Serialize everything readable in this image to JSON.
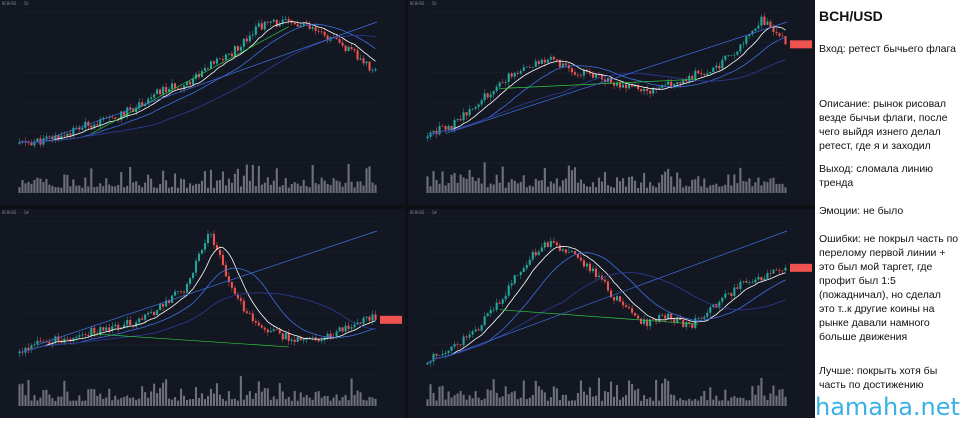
{
  "notes": {
    "title": "BCH/USD",
    "entry": "Вход: ретест бычьего флага",
    "description": "Описание: рынок рисовал везде бычьи флаги, после чего выйдя изнего делал ретест, где я и заходил",
    "exit": "Выход: сломала линию тренда",
    "emotions": "Эмоции: не было",
    "mistakes": "Ошибки: не покрыл часть по перелому первой линии + это был мой таргет, где профит был 1:5 (пожадничал), но сделал это т..к другие коины на рынке давали намного больше движения",
    "better": "Лучше: покрыть хотя бы часть по достижению"
  },
  "watermark": "hamaha.net",
  "colors": {
    "panel_bg": "#131722",
    "candle_up": "#26a69a",
    "candle_down": "#ef5350",
    "volume": "#8c8f99",
    "trendline": "#2ecc40",
    "ma_blue": "#3f6fe0",
    "ma_navy": "#2c3c9c",
    "accent_text": "#39b1e6"
  },
  "charts": [
    {
      "id": "top-left",
      "seed": 11,
      "n": 120,
      "path": [
        0.08,
        0.1,
        0.15,
        0.22,
        0.25,
        0.35,
        0.45,
        0.5,
        0.62,
        0.72,
        0.9,
        0.93,
        0.9,
        0.82,
        0.72,
        0.58
      ],
      "has_label": false
    },
    {
      "id": "top-right",
      "seed": 23,
      "n": 120,
      "path": [
        0.15,
        0.2,
        0.35,
        0.5,
        0.62,
        0.68,
        0.6,
        0.55,
        0.5,
        0.45,
        0.48,
        0.55,
        0.6,
        0.75,
        0.95,
        0.8
      ],
      "has_label": true
    },
    {
      "id": "bottom-left",
      "seed": 37,
      "n": 120,
      "path": [
        0.1,
        0.18,
        0.2,
        0.25,
        0.28,
        0.32,
        0.42,
        0.55,
        0.95,
        0.5,
        0.3,
        0.22,
        0.18,
        0.22,
        0.28,
        0.35
      ],
      "has_label": true
    },
    {
      "id": "bottom-right",
      "seed": 51,
      "n": 120,
      "path": [
        0.05,
        0.12,
        0.25,
        0.45,
        0.7,
        0.85,
        0.8,
        0.65,
        0.45,
        0.3,
        0.35,
        0.28,
        0.42,
        0.55,
        0.62,
        0.7
      ],
      "has_label": true
    }
  ]
}
